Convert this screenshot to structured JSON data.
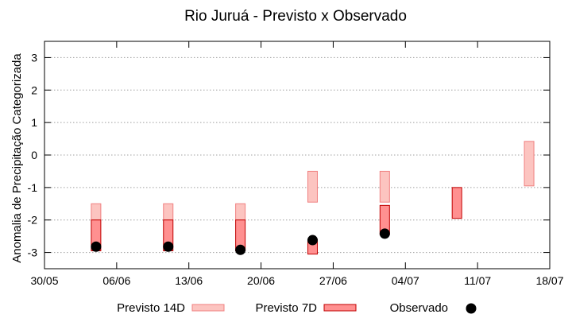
{
  "chart_data": {
    "type": "range-bar",
    "title": "Rio Juruá - Previsto x Observado",
    "xlabel": "",
    "ylabel": "Anomalia de Precipitação Categorizada",
    "xlim": [
      "30/05",
      "18/07"
    ],
    "ylim": [
      -3.5,
      3.5
    ],
    "x_ticks": [
      "30/05",
      "06/06",
      "13/06",
      "20/06",
      "27/06",
      "04/07",
      "11/07",
      "18/07"
    ],
    "y_ticks": [
      3,
      2,
      1,
      0,
      -1,
      -2,
      -3
    ],
    "grid": "horizontal dotted",
    "legend_position": "bottom",
    "series": [
      {
        "name": "Previsto 14D",
        "kind": "range",
        "color": "#fcc4c0",
        "stroke": "#f08080",
        "points": [
          {
            "x": "04/06",
            "low": -2.0,
            "high": -1.5
          },
          {
            "x": "11/06",
            "low": -2.0,
            "high": -1.5
          },
          {
            "x": "18/06",
            "low": -2.0,
            "high": -1.5
          },
          {
            "x": "25/06",
            "low": -1.45,
            "high": -0.5
          },
          {
            "x": "02/07",
            "low": -1.45,
            "high": -0.5
          },
          {
            "x": "16/07",
            "low": -0.95,
            "high": 0.42
          }
        ]
      },
      {
        "name": "Previsto 7D",
        "kind": "range",
        "color": "#ff9090",
        "stroke": "#c00000",
        "points": [
          {
            "x": "04/06",
            "low": -2.95,
            "high": -2.0
          },
          {
            "x": "11/06",
            "low": -2.95,
            "high": -2.0
          },
          {
            "x": "18/06",
            "low": -2.95,
            "high": -2.0
          },
          {
            "x": "25/06",
            "low": -3.05,
            "high": -2.6
          },
          {
            "x": "02/07",
            "low": -2.45,
            "high": -1.55
          },
          {
            "x": "09/07",
            "low": -1.95,
            "high": -1.0
          }
        ]
      },
      {
        "name": "Observado",
        "kind": "point",
        "color": "#000000",
        "points": [
          {
            "x": "04/06",
            "y": -2.82
          },
          {
            "x": "11/06",
            "y": -2.82
          },
          {
            "x": "18/06",
            "y": -2.92
          },
          {
            "x": "25/06",
            "y": -2.62
          },
          {
            "x": "02/07",
            "y": -2.42
          }
        ]
      }
    ]
  }
}
